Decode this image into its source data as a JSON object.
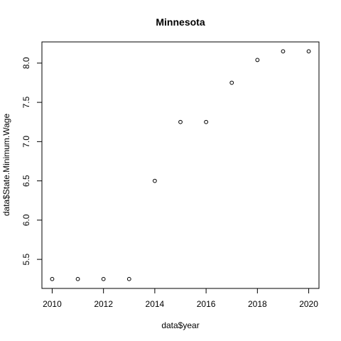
{
  "chart_data": {
    "type": "scatter",
    "title": "Minnesota",
    "xlabel": "data$year",
    "ylabel": "data$State.Minimum.Wage",
    "x": [
      2010,
      2011,
      2012,
      2013,
      2014,
      2015,
      2016,
      2017,
      2018,
      2019,
      2020
    ],
    "y": [
      5.25,
      5.25,
      5.25,
      5.25,
      6.5,
      7.25,
      7.25,
      7.75,
      8.04,
      8.15,
      8.15
    ],
    "xlim": [
      2009.6,
      2020.4
    ],
    "ylim": [
      5.13,
      8.27
    ],
    "xticks": [
      2010,
      2012,
      2014,
      2016,
      2018,
      2020
    ],
    "yticks": [
      5.5,
      6.0,
      6.5,
      7.0,
      7.5,
      8.0
    ],
    "ytick_labels": [
      "5.5",
      "6.0",
      "6.5",
      "7.0",
      "7.5",
      "8.0"
    ],
    "marker": "open-circle",
    "grid": false,
    "legend": "none",
    "colors": {
      "points": "#000000",
      "axes": "#000000",
      "background": "#ffffff"
    }
  }
}
